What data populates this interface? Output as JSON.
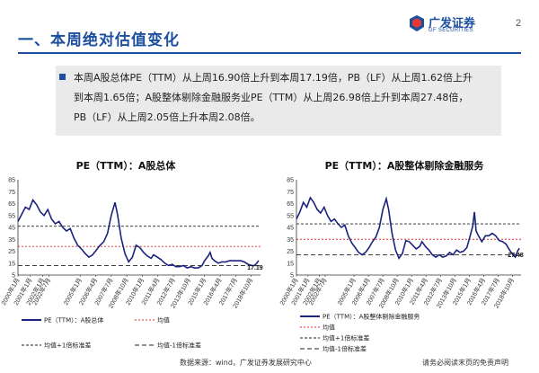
{
  "header": {
    "title": "一、本周绝对估值变化",
    "page_number": "2",
    "logo_cn": "广发证券",
    "logo_en": "GF SECURITIES",
    "logo_icon": "gf-logo-icon"
  },
  "summary": {
    "line1": "本周A股总体PE（TTM）从上周16.90倍上升到本周17.19倍，PB（LF）从上周1.62倍上升",
    "line2": "到本周1.65倍；A股整体剔除金融服务业PE（TTM）从上周26.98倍上升到本周27.48倍，",
    "line3": "PB（LF）从上周2.05倍上升本周2.08倍。"
  },
  "footer": {
    "source": "数据来源：wind，广发证券发展研究中心",
    "disclaimer": "请务必阅读末页的免责声明"
  },
  "chart_data": [
    {
      "type": "line",
      "title": "PE（TTM）：A股总体",
      "ylim": [
        5,
        85
      ],
      "yticks": [
        5,
        15,
        25,
        35,
        45,
        55,
        65,
        75,
        85
      ],
      "x_ticks": [
        "2000年1月",
        "2001年1月",
        "2002年1月",
        "2002年7月",
        "2005年1月",
        "2006年4月",
        "2007年7月",
        "2008年10月",
        "2010年1月",
        "2011年4月",
        "2012年7月",
        "2013年10月",
        "2015年1月",
        "2016年4月",
        "2017年7月",
        "2018年10月"
      ],
      "series": [
        {
          "name": "PE（TTM）：A股总体",
          "color": "#1a237e",
          "points": [
            [
              2000.0,
              50
            ],
            [
              2000.3,
              56
            ],
            [
              2000.6,
              62
            ],
            [
              2000.9,
              60
            ],
            [
              2001.2,
              68
            ],
            [
              2001.5,
              64
            ],
            [
              2001.8,
              58
            ],
            [
              2002.1,
              55
            ],
            [
              2002.4,
              60
            ],
            [
              2002.7,
              52
            ],
            [
              2003.0,
              48
            ],
            [
              2003.3,
              50
            ],
            [
              2003.6,
              45
            ],
            [
              2003.9,
              42
            ],
            [
              2004.2,
              44
            ],
            [
              2004.5,
              36
            ],
            [
              2004.8,
              30
            ],
            [
              2005.1,
              27
            ],
            [
              2005.4,
              23
            ],
            [
              2005.7,
              20
            ],
            [
              2006.0,
              22
            ],
            [
              2006.3,
              26
            ],
            [
              2006.6,
              30
            ],
            [
              2006.9,
              33
            ],
            [
              2007.2,
              40
            ],
            [
              2007.5,
              55
            ],
            [
              2007.8,
              66
            ],
            [
              2008.0,
              56
            ],
            [
              2008.3,
              36
            ],
            [
              2008.6,
              23
            ],
            [
              2008.9,
              16
            ],
            [
              2009.2,
              20
            ],
            [
              2009.5,
              30
            ],
            [
              2009.8,
              28
            ],
            [
              2010.1,
              24
            ],
            [
              2010.4,
              21
            ],
            [
              2010.7,
              19
            ],
            [
              2010.9,
              22
            ],
            [
              2011.2,
              20
            ],
            [
              2011.5,
              18
            ],
            [
              2011.8,
              15
            ],
            [
              2012.1,
              13
            ],
            [
              2012.4,
              14
            ],
            [
              2012.7,
              12
            ],
            [
              2013.0,
              12
            ],
            [
              2013.3,
              13
            ],
            [
              2013.6,
              11
            ],
            [
              2013.9,
              12
            ],
            [
              2014.2,
              11
            ],
            [
              2014.5,
              11
            ],
            [
              2014.8,
              13
            ],
            [
              2015.0,
              17
            ],
            [
              2015.3,
              21
            ],
            [
              2015.45,
              24
            ],
            [
              2015.6,
              19
            ],
            [
              2015.8,
              17
            ],
            [
              2016.1,
              15
            ],
            [
              2016.4,
              16
            ],
            [
              2016.7,
              16
            ],
            [
              2017.0,
              17
            ],
            [
              2017.3,
              17
            ],
            [
              2017.6,
              17
            ],
            [
              2017.9,
              17
            ],
            [
              2018.2,
              16
            ],
            [
              2018.5,
              14
            ],
            [
              2018.8,
              13
            ],
            [
              2019.0,
              13
            ],
            [
              2019.2,
              15
            ],
            [
              2019.35,
              17.19
            ]
          ]
        },
        {
          "name": "均值",
          "color": "#d32f2f",
          "dash": "2,2",
          "value": 29
        },
        {
          "name": "均值+1倍标准差",
          "color": "#222222",
          "dash": "3,2",
          "value": 46
        },
        {
          "name": "均值-1倍标准差",
          "color": "#222222",
          "dash": "5,3",
          "value": 13
        }
      ],
      "annotation": "17.19",
      "legend": "bottom"
    },
    {
      "type": "line",
      "title": "PE（TTM）：A股整体剔除金融服务",
      "ylim": [
        5,
        85
      ],
      "yticks": [
        5,
        15,
        25,
        35,
        45,
        55,
        65,
        75,
        85
      ],
      "x_ticks": [
        "2000年1月",
        "2001年1月",
        "2002年1月",
        "2002年7月",
        "2005年1月",
        "2006年4月",
        "2007年7月",
        "2008年10月",
        "2010年1月",
        "2011年4月",
        "2012年7月",
        "2013年10月",
        "2015年1月",
        "2016年4月",
        "2017年7月",
        "2018年10月"
      ],
      "series": [
        {
          "name": "PE（TTM）：A股整体剔除金融服务",
          "color": "#1a237e",
          "points": [
            [
              2000.0,
              52
            ],
            [
              2000.3,
              58
            ],
            [
              2000.6,
              66
            ],
            [
              2000.9,
              62
            ],
            [
              2001.2,
              70
            ],
            [
              2001.5,
              66
            ],
            [
              2001.8,
              60
            ],
            [
              2002.1,
              57
            ],
            [
              2002.4,
              62
            ],
            [
              2002.7,
              55
            ],
            [
              2003.0,
              50
            ],
            [
              2003.3,
              52
            ],
            [
              2003.6,
              48
            ],
            [
              2003.9,
              45
            ],
            [
              2004.2,
              47
            ],
            [
              2004.5,
              38
            ],
            [
              2004.8,
              32
            ],
            [
              2005.1,
              28
            ],
            [
              2005.4,
              24
            ],
            [
              2005.7,
              22
            ],
            [
              2006.0,
              24
            ],
            [
              2006.3,
              28
            ],
            [
              2006.6,
              33
            ],
            [
              2006.9,
              37
            ],
            [
              2007.2,
              45
            ],
            [
              2007.5,
              60
            ],
            [
              2007.8,
              69
            ],
            [
              2008.0,
              60
            ],
            [
              2008.3,
              40
            ],
            [
              2008.6,
              26
            ],
            [
              2008.9,
              19
            ],
            [
              2009.2,
              23
            ],
            [
              2009.5,
              34
            ],
            [
              2009.8,
              33
            ],
            [
              2010.1,
              30
            ],
            [
              2010.4,
              27
            ],
            [
              2010.7,
              29
            ],
            [
              2010.9,
              33
            ],
            [
              2011.2,
              29
            ],
            [
              2011.5,
              26
            ],
            [
              2011.8,
              22
            ],
            [
              2012.1,
              20
            ],
            [
              2012.4,
              22
            ],
            [
              2012.7,
              20
            ],
            [
              2013.0,
              21
            ],
            [
              2013.3,
              24
            ],
            [
              2013.6,
              22
            ],
            [
              2013.9,
              26
            ],
            [
              2014.2,
              24
            ],
            [
              2014.5,
              25
            ],
            [
              2014.8,
              28
            ],
            [
              2015.0,
              35
            ],
            [
              2015.3,
              46
            ],
            [
              2015.45,
              58
            ],
            [
              2015.6,
              42
            ],
            [
              2015.8,
              38
            ],
            [
              2016.1,
              33
            ],
            [
              2016.4,
              38
            ],
            [
              2016.7,
              38
            ],
            [
              2017.0,
              40
            ],
            [
              2017.3,
              38
            ],
            [
              2017.6,
              34
            ],
            [
              2017.9,
              33
            ],
            [
              2018.2,
              31
            ],
            [
              2018.5,
              26
            ],
            [
              2018.8,
              22
            ],
            [
              2019.0,
              20
            ],
            [
              2019.2,
              25
            ],
            [
              2019.35,
              27.48
            ]
          ]
        },
        {
          "name": "均值",
          "color": "#d32f2f",
          "dash": "2,2",
          "value": 35
        },
        {
          "name": "均值+1倍标准差",
          "color": "#222222",
          "dash": "3,2",
          "value": 48
        },
        {
          "name": "均值-1倍标准差",
          "color": "#222222",
          "dash": "5,3",
          "value": 22
        }
      ],
      "annotation": "27.48",
      "legend": "bottom"
    }
  ]
}
